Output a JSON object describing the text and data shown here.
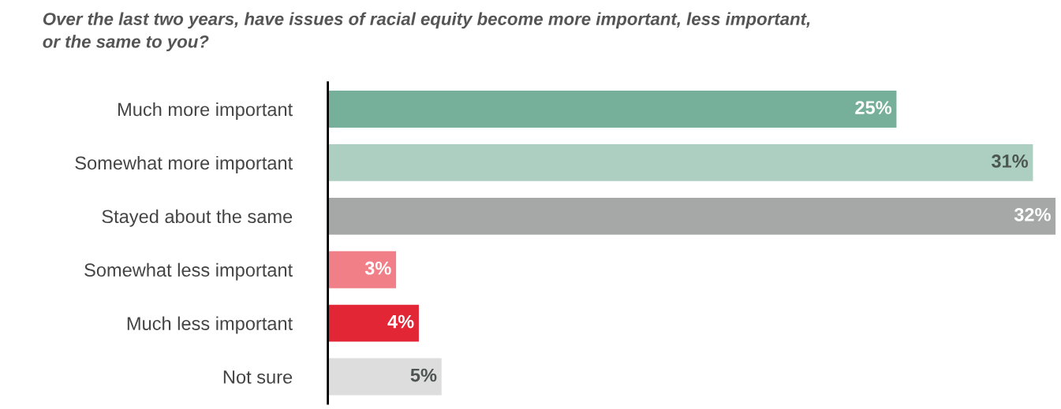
{
  "chart_data": {
    "type": "bar",
    "orientation": "horizontal",
    "title": "Over the last two years, have issues of racial equity become more important, less important,\nor the same to you?",
    "categories": [
      "Much more important",
      "Somewhat more important",
      "Stayed about the same",
      "Somewhat less important",
      "Much less important",
      "Not sure"
    ],
    "values": [
      25,
      31,
      32,
      3,
      4,
      5
    ],
    "value_labels": [
      "25%",
      "31%",
      "32%",
      "3%",
      "4%",
      "5%"
    ],
    "colors": [
      "#76b09a",
      "#adcfc1",
      "#a5a8a7",
      "#f07f87",
      "#e32636",
      "#dcdddc"
    ],
    "tick_labels": "y",
    "grid": false,
    "legend": false
  }
}
